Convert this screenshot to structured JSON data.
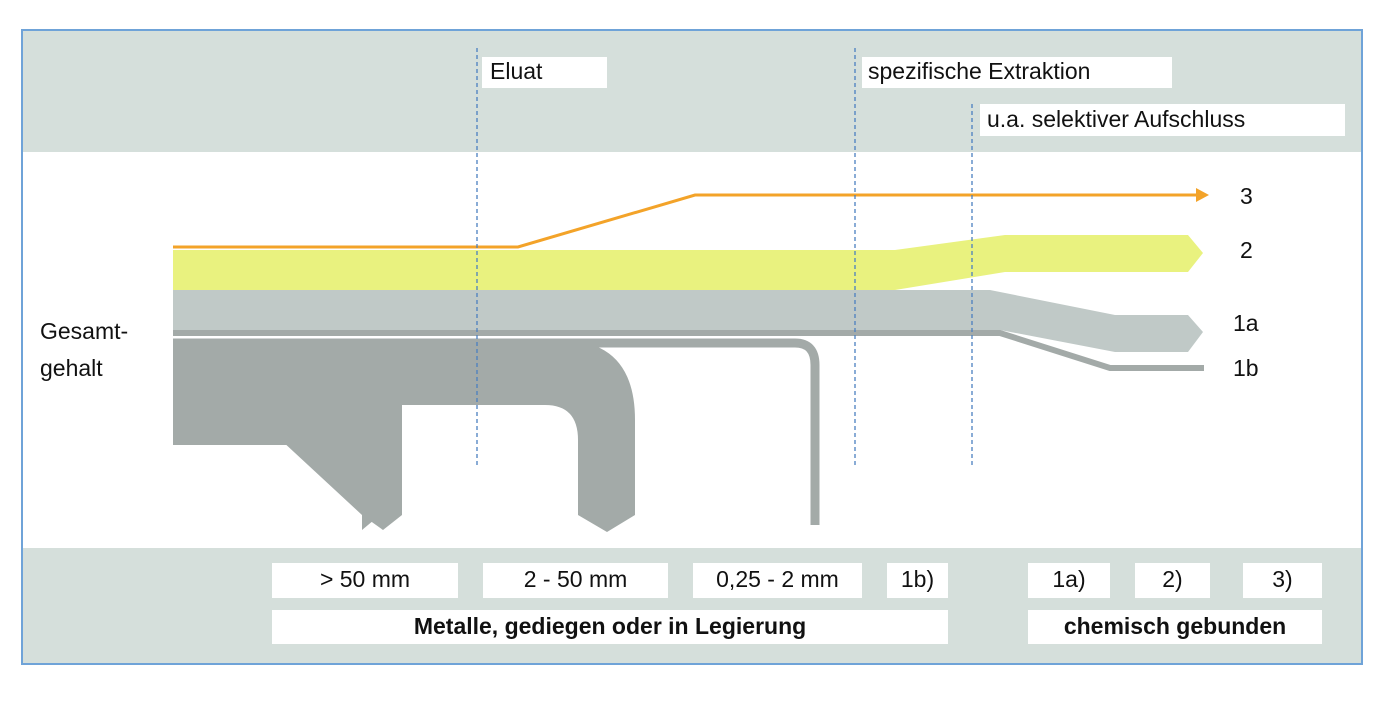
{
  "header": {
    "eluat": "Eluat",
    "extraction": "spezifische Extraktion",
    "digestion": "u.a. selektiver Aufschluss"
  },
  "flows": {
    "left_label": [
      "Gesamt-",
      "gehalt"
    ],
    "labels": [
      "3",
      "2",
      "1a",
      "1b"
    ]
  },
  "footer": {
    "fractions": [
      "> 50  mm",
      "2 - 50 mm",
      "0,25 - 2 mm",
      "1b)",
      "1a)",
      "2)",
      "3)"
    ],
    "groups": [
      "Metalle, gediegen oder in Legierung",
      "chemisch gebunden"
    ]
  }
}
